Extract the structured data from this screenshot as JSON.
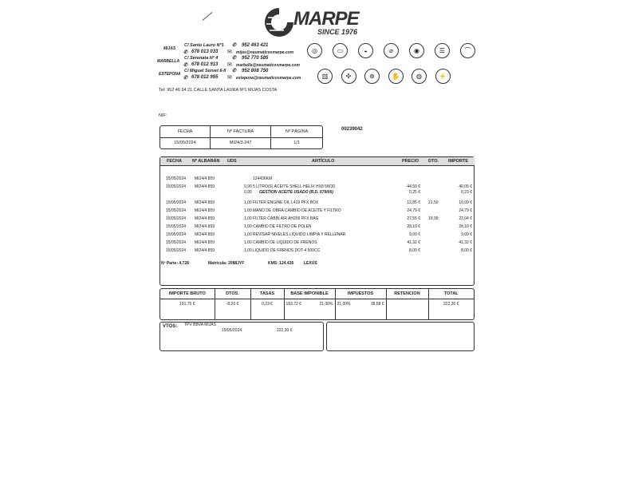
{
  "brand": {
    "name": "MARPE",
    "tagline": "SINCE 1976"
  },
  "contacts": [
    {
      "city": "MIJAS",
      "street": "C/ Santo Lauro Nº1",
      "phone": "952 463 421",
      "mobile": "678 013 033",
      "email": "mijas@neumaticosmarpe.com"
    },
    {
      "city": "MARBELLA",
      "street": "C/ Serenata Nº 4",
      "phone": "952 770 585",
      "mobile": "678 012 913",
      "email": "marbella@neumaticosmarpe.com"
    },
    {
      "city": "ESTEPONA",
      "street": "C/ Miguel Servet 6-8",
      "phone": "952 808 750",
      "mobile": "678 012 955",
      "email": "estepona@neumaticosmarpe.com"
    }
  ],
  "service_icons": [
    "tire-icon",
    "battery-icon",
    "oil-icon",
    "thermometer-icon",
    "brake-disc-icon",
    "headlight-icon",
    "wiper-icon",
    "filter-icon",
    "fan-icon",
    "wheel-icon",
    "hand-car-icon",
    "tire-pressure-icon",
    "plug-icon"
  ],
  "address_line": "Tel: 952 46 34 21 CALLE SANTA LAURA Nº1 MIJAS COSTA",
  "nif_label": "NIF:",
  "invoice_header": {
    "headers": [
      "FECHA",
      "Nº FACTURA",
      "Nº PÁGINA"
    ],
    "values": [
      "15/05/2024",
      "MI24/3.247",
      "1/1"
    ]
  },
  "document_number": "00239042",
  "items_table": {
    "headers": [
      "FECHA",
      "Nº ALBARÁN",
      "UDS",
      "ARTÍCULO",
      "PRECIO",
      "DTO.",
      "IMPORTE"
    ],
    "rows": [
      {
        "fecha": "15/05/2024",
        "albaran": "MI24/4.859",
        "uds": "",
        "articulo": "124436KM",
        "precio": "",
        "dto": "",
        "importe": ""
      },
      {
        "fecha": "15/05/2024",
        "albaran": "MI24/4.859",
        "uds": "0,90",
        "articulo": "5 LITRO(S) ACEITE SHELL HELIX HX8 5W30",
        "precio": "44,50 €",
        "dto": "",
        "importe": "40,05 €"
      },
      {
        "fecha": "",
        "albaran": "",
        "uds": "0,90",
        "articulo": "GESTION ACEITE USADO (R.D. 679/06)",
        "precio": "0,25 €",
        "dto": "",
        "importe": "0,23 €",
        "italic": true
      },
      {
        "fecha": "15/05/2024",
        "albaran": "MI24/4.859",
        "uds": "1,00",
        "articulo": "FILTER ENGINE OIL L419 PFX BOX",
        "precio": "12,85 €",
        "dto": "21,50",
        "importe": "10,09 €"
      },
      {
        "fecha": "15/05/2024",
        "albaran": "MI24/4.859",
        "uds": "1,00",
        "articulo": "MANO DE OBRA CAMBIO DE ACEITE Y FILTRO",
        "precio": "24,79 €",
        "dto": "",
        "importe": "24,79 €"
      },
      {
        "fecha": "15/05/2024",
        "albaran": "MI24/4.859",
        "uds": "1,00",
        "articulo": "FILTER CABIN AIR AH256 PFX BAG",
        "precio": "27,55 €",
        "dto": "19,99",
        "importe": "22,04 €"
      },
      {
        "fecha": "15/05/2024",
        "albaran": "MI24/4.859",
        "uds": "1,00",
        "articulo": "CAMBIO DE FILTRO DE POLEN",
        "precio": "28,10 €",
        "dto": "",
        "importe": "28,10 €"
      },
      {
        "fecha": "15/05/2024",
        "albaran": "MI24/4.859",
        "uds": "1,00",
        "articulo": "REVISAR NIVELES LIQUIDO LIMPIA Y RELLENAR",
        "precio": "9,09 €",
        "dto": "",
        "importe": "9,09 €"
      },
      {
        "fecha": "15/05/2024",
        "albaran": "MI24/4.859",
        "uds": "1,00",
        "articulo": "CAMBIO DE LIQUIDO DE FRENOS",
        "precio": "41,32 €",
        "dto": "",
        "importe": "41,32 €"
      },
      {
        "fecha": "15/05/2024",
        "albaran": "MI24/4.859",
        "uds": "1,00",
        "articulo": "LIQUIDO DE FRENOS DOT-4 500CC",
        "precio": "8,00 €",
        "dto": "",
        "importe": "8,00 €"
      }
    ]
  },
  "vehicle": {
    "parte": "Nº Parte: 4.728",
    "matricula": "Matricula: 2088JYF",
    "kms": "KMS: 124.436",
    "marca": "LEXUS"
  },
  "totals": {
    "headers": [
      "IMPORTE BRUTO",
      "DTOS.",
      "TASAS",
      "BASE IMPONIBLE",
      "IMPUESTOS",
      "RETENCION",
      "TOTAL"
    ],
    "importe_bruto": "191,75 €",
    "dtos": "-8,26 €",
    "tasas": "0,23 €",
    "base": "183,72 €",
    "base_pct": "21,00%",
    "imp_pct": "21,00%",
    "impuestos": "38,58 €",
    "retencion": "",
    "total": "222,30 €"
  },
  "vtos": {
    "label": "VTOS:",
    "method": "TPV BBVA MIJAS",
    "date": "15/05/2024",
    "amount": "222,30 €"
  }
}
